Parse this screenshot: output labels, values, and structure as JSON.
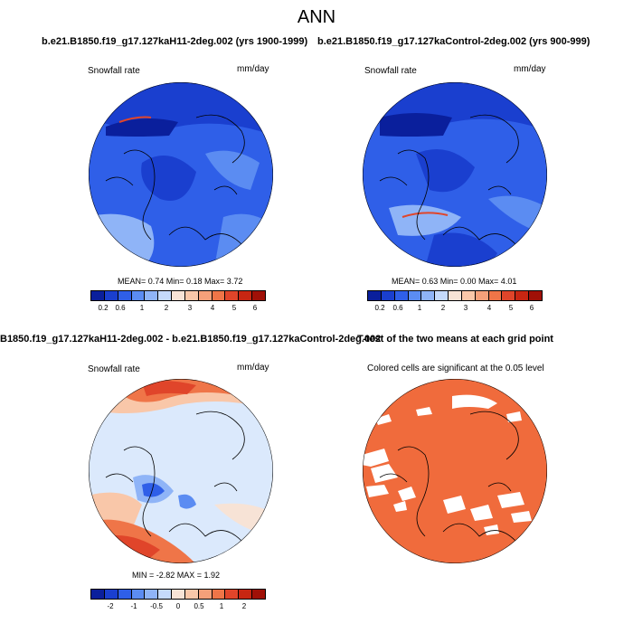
{
  "figure_title": "ANN",
  "panels": [
    {
      "title": "b.e21.B1850.f19_g17.127kaH11-2deg.002 (yrs 1900-1999)",
      "variable": "Snowfall rate",
      "units": "mm/day",
      "stats": "MEAN=  0.74  Min=  0.18  Max=  3.72",
      "colorbar_ticks": [
        "0.2",
        "0.6",
        "1",
        "2",
        "3",
        "4",
        "5",
        "6"
      ]
    },
    {
      "title": "b.e21.B1850.f19_g17.127kaControl-2deg.002 (yrs 900-999)",
      "variable": "Snowfall rate",
      "units": "mm/day",
      "stats": "MEAN=  0.63  Min=  0.00  Max=  4.01",
      "colorbar_ticks": [
        "0.2",
        "0.6",
        "1",
        "2",
        "3",
        "4",
        "5",
        "6"
      ]
    },
    {
      "title": "B1850.f19_g17.127kaH11-2deg.002 - b.e21.B1850.f19_g17.127kaControl-2deg.002",
      "variable": "Snowfall rate",
      "units": "mm/day",
      "stats": "MIN = -2.82 MAX =  1.92",
      "colorbar_ticks": [
        "-2",
        "-1",
        "-0.5",
        "0",
        "0.5",
        "1",
        "2"
      ]
    },
    {
      "title": "T-test of the two means at each grid point",
      "label": "Colored cells are significant at the 0.05 level"
    }
  ],
  "colors": {
    "abs_scale": [
      "#0a1f9c",
      "#1a3fcf",
      "#2f5fe8",
      "#5b8cf2",
      "#8fb4f7",
      "#c5dafb",
      "#f7e3d6",
      "#f9c7a9",
      "#f5a07a",
      "#ef7548",
      "#e0452a",
      "#c82612",
      "#a01007"
    ],
    "diff_scale": [
      "#0a1f9c",
      "#1a3fcf",
      "#2f5fe8",
      "#5b8cf2",
      "#8fb4f7",
      "#c5dafb",
      "#f7e3d6",
      "#f9c7a9",
      "#f5a07a",
      "#ef7548",
      "#e0452a",
      "#c82612",
      "#a01007"
    ],
    "significance": "#f06b3c"
  }
}
